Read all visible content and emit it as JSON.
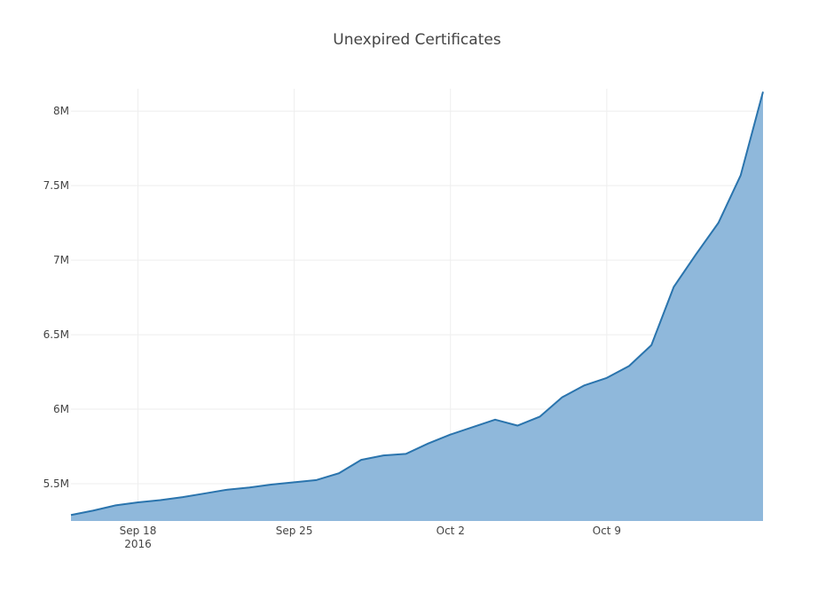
{
  "chart_data": {
    "type": "area",
    "title": "Unexpired Certificates",
    "xlabel": "",
    "ylabel": "",
    "x": [
      "2016-09-15",
      "2016-09-16",
      "2016-09-17",
      "2016-09-18",
      "2016-09-19",
      "2016-09-20",
      "2016-09-21",
      "2016-09-22",
      "2016-09-23",
      "2016-09-24",
      "2016-09-25",
      "2016-09-26",
      "2016-09-27",
      "2016-09-28",
      "2016-09-29",
      "2016-09-30",
      "2016-10-01",
      "2016-10-02",
      "2016-10-03",
      "2016-10-04",
      "2016-10-05",
      "2016-10-06",
      "2016-10-07",
      "2016-10-08",
      "2016-10-09",
      "2016-10-10",
      "2016-10-11",
      "2016-10-12",
      "2016-10-13",
      "2016-10-14",
      "2016-10-15",
      "2016-10-16"
    ],
    "series": [
      {
        "values": [
          5290000,
          5320000,
          5355000,
          5375000,
          5390000,
          5410000,
          5435000,
          5460000,
          5475000,
          5495000,
          5510000,
          5525000,
          5570000,
          5660000,
          5690000,
          5700000,
          5770000,
          5830000,
          5880000,
          5930000,
          5890000,
          5950000,
          6080000,
          6160000,
          6210000,
          6290000,
          6430000,
          6820000,
          7040000,
          7250000,
          7570000,
          8130000
        ],
        "color": "#1f77b4"
      }
    ],
    "fill_color": "#8fb8db",
    "line_color": "#2a74ad",
    "ylim": [
      5250000,
      8150000
    ],
    "xlim": [
      "2016-09-15",
      "2016-10-16"
    ],
    "y_ticks": [
      {
        "value": 5500000,
        "label": "5.5M"
      },
      {
        "value": 6000000,
        "label": "6M"
      },
      {
        "value": 6500000,
        "label": "6.5M"
      },
      {
        "value": 7000000,
        "label": "7M"
      },
      {
        "value": 7500000,
        "label": "7.5M"
      },
      {
        "value": 8000000,
        "label": "8M"
      }
    ],
    "x_ticks": [
      {
        "date": "2016-09-18",
        "label": "Sep 18",
        "sublabel": "2016"
      },
      {
        "date": "2016-09-25",
        "label": "Sep 25",
        "sublabel": ""
      },
      {
        "date": "2016-10-02",
        "label": "Oct 2",
        "sublabel": ""
      },
      {
        "date": "2016-10-09",
        "label": "Oct 9",
        "sublabel": ""
      }
    ],
    "grid": true,
    "legend": "none"
  }
}
